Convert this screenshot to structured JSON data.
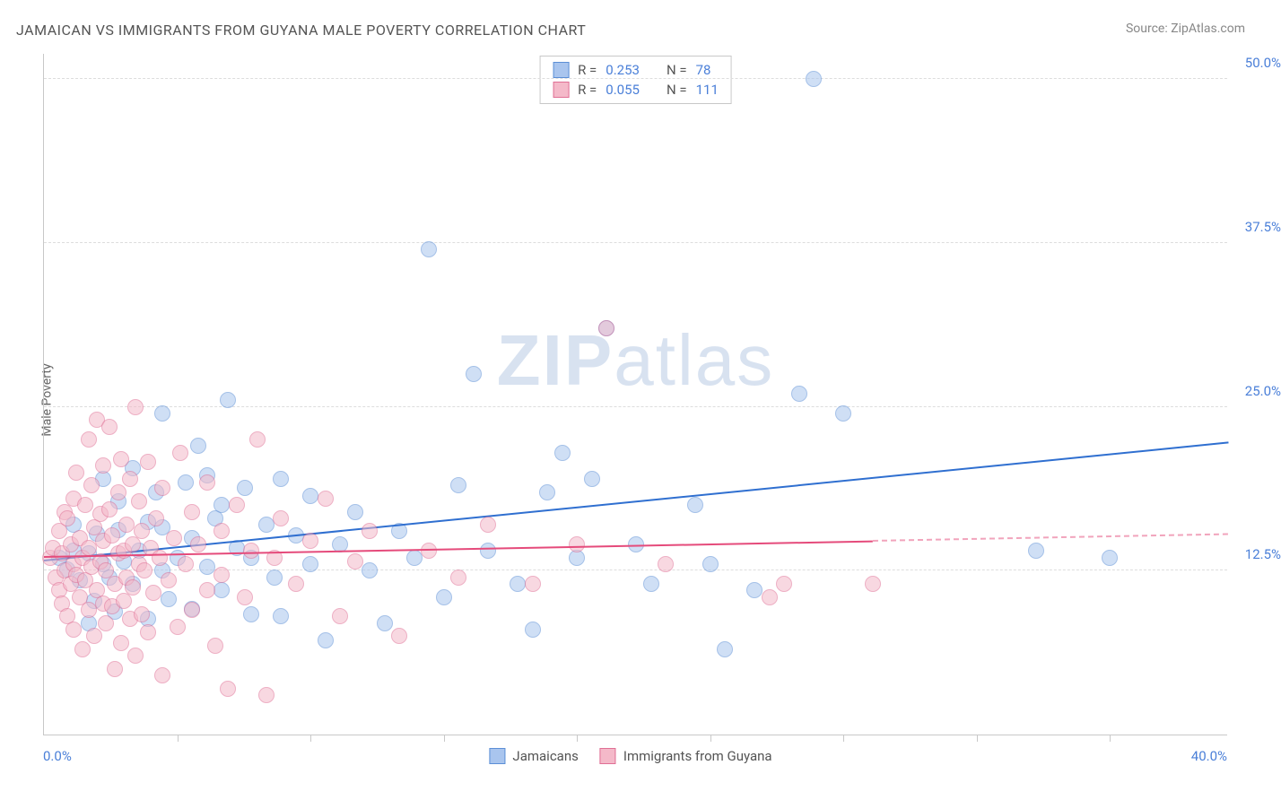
{
  "title": "JAMAICAN VS IMMIGRANTS FROM GUYANA MALE POVERTY CORRELATION CHART",
  "source_prefix": "Source: ",
  "source_name": "ZipAtlas.com",
  "ylabel": "Male Poverty",
  "watermark_bold": "ZIP",
  "watermark_rest": "atlas",
  "chart": {
    "type": "scatter",
    "xlim": [
      0,
      40
    ],
    "ylim": [
      0,
      52
    ],
    "x_min_label": "0.0%",
    "x_max_label": "40.0%",
    "x_tick_positions": [
      4.5,
      9,
      13.5,
      18,
      22.5,
      27,
      31.5,
      36
    ],
    "y_ticks": [
      {
        "v": 12.5,
        "label": "12.5%"
      },
      {
        "v": 25.0,
        "label": "25.0%"
      },
      {
        "v": 37.5,
        "label": "37.5%"
      },
      {
        "v": 50.0,
        "label": "50.0%"
      }
    ],
    "background_color": "#ffffff",
    "grid_color": "#dddddd",
    "axis_color": "#c8c8c8",
    "tick_label_color": "#4a7fd8",
    "marker_radius": 9,
    "marker_opacity": 0.55,
    "series": [
      {
        "name": "Jamaicans",
        "fill": "#a9c5ee",
        "stroke": "#5c8fd6",
        "R_label": "R  =",
        "R": "0.253",
        "N_label": "N  =",
        "N": "78",
        "trend": {
          "x1": 0,
          "y1": 13.2,
          "x2": 40,
          "y2": 22.2,
          "color": "#2f6fd0",
          "dash_after_x": null
        },
        "points": [
          [
            0.5,
            13.5
          ],
          [
            0.8,
            12.6
          ],
          [
            1.0,
            14.0
          ],
          [
            1.0,
            16.0
          ],
          [
            1.2,
            11.8
          ],
          [
            1.5,
            8.5
          ],
          [
            1.5,
            13.8
          ],
          [
            1.7,
            10.2
          ],
          [
            1.8,
            15.3
          ],
          [
            2.0,
            13.0
          ],
          [
            2.0,
            19.5
          ],
          [
            2.2,
            12.0
          ],
          [
            2.4,
            9.4
          ],
          [
            2.5,
            15.6
          ],
          [
            2.5,
            17.8
          ],
          [
            2.7,
            13.2
          ],
          [
            3.0,
            11.5
          ],
          [
            3.0,
            20.3
          ],
          [
            3.2,
            14.0
          ],
          [
            3.5,
            8.8
          ],
          [
            3.5,
            16.2
          ],
          [
            3.8,
            18.5
          ],
          [
            4.0,
            12.5
          ],
          [
            4.0,
            15.8
          ],
          [
            4.0,
            24.5
          ],
          [
            4.2,
            10.3
          ],
          [
            4.5,
            13.5
          ],
          [
            4.8,
            19.2
          ],
          [
            5.0,
            9.6
          ],
          [
            5.0,
            15.0
          ],
          [
            5.2,
            22.0
          ],
          [
            5.5,
            12.8
          ],
          [
            5.8,
            16.5
          ],
          [
            6.0,
            11.0
          ],
          [
            6.0,
            17.5
          ],
          [
            6.2,
            25.5
          ],
          [
            6.5,
            14.2
          ],
          [
            6.8,
            18.8
          ],
          [
            7.0,
            9.2
          ],
          [
            7.0,
            13.5
          ],
          [
            7.5,
            16.0
          ],
          [
            7.8,
            12.0
          ],
          [
            8.0,
            19.5
          ],
          [
            8.0,
            9.0
          ],
          [
            8.5,
            15.2
          ],
          [
            9.0,
            18.2
          ],
          [
            9.0,
            13.0
          ],
          [
            9.5,
            7.2
          ],
          [
            10.0,
            14.5
          ],
          [
            10.5,
            17.0
          ],
          [
            11.0,
            12.5
          ],
          [
            11.5,
            8.5
          ],
          [
            12.0,
            15.5
          ],
          [
            12.5,
            13.5
          ],
          [
            13.0,
            37.0
          ],
          [
            13.5,
            10.5
          ],
          [
            14.0,
            19.0
          ],
          [
            14.5,
            27.5
          ],
          [
            15.0,
            14.0
          ],
          [
            16.0,
            11.5
          ],
          [
            16.5,
            8.0
          ],
          [
            17.0,
            18.5
          ],
          [
            17.5,
            21.5
          ],
          [
            18.0,
            13.5
          ],
          [
            18.5,
            19.5
          ],
          [
            19.0,
            31.0
          ],
          [
            20.0,
            14.5
          ],
          [
            20.5,
            11.5
          ],
          [
            22.0,
            17.5
          ],
          [
            22.5,
            13.0
          ],
          [
            23.0,
            6.5
          ],
          [
            24.0,
            11.0
          ],
          [
            25.5,
            26.0
          ],
          [
            26.0,
            50.0
          ],
          [
            27.0,
            24.5
          ],
          [
            33.5,
            14.0
          ],
          [
            36.0,
            13.5
          ],
          [
            5.5,
            19.8
          ]
        ]
      },
      {
        "name": "Immigrants from Guyana",
        "fill": "#f4b9c9",
        "stroke": "#e06f95",
        "R_label": "R  =",
        "R": "0.055",
        "N_label": "N  =",
        "N": "111",
        "trend": {
          "x1": 0,
          "y1": 13.5,
          "x2": 40,
          "y2": 15.2,
          "color": "#e54b7b",
          "dash_after_x": 28
        },
        "points": [
          [
            0.2,
            13.5
          ],
          [
            0.3,
            14.2
          ],
          [
            0.4,
            12.0
          ],
          [
            0.5,
            11.0
          ],
          [
            0.5,
            15.5
          ],
          [
            0.6,
            10.0
          ],
          [
            0.6,
            13.8
          ],
          [
            0.7,
            17.0
          ],
          [
            0.7,
            12.5
          ],
          [
            0.8,
            9.0
          ],
          [
            0.8,
            16.5
          ],
          [
            0.9,
            14.5
          ],
          [
            0.9,
            11.5
          ],
          [
            1.0,
            13.0
          ],
          [
            1.0,
            18.0
          ],
          [
            1.0,
            8.0
          ],
          [
            1.1,
            20.0
          ],
          [
            1.1,
            12.2
          ],
          [
            1.2,
            15.0
          ],
          [
            1.2,
            10.5
          ],
          [
            1.3,
            6.5
          ],
          [
            1.3,
            13.5
          ],
          [
            1.4,
            17.5
          ],
          [
            1.4,
            11.8
          ],
          [
            1.5,
            22.5
          ],
          [
            1.5,
            14.2
          ],
          [
            1.5,
            9.5
          ],
          [
            1.6,
            12.8
          ],
          [
            1.6,
            19.0
          ],
          [
            1.7,
            7.5
          ],
          [
            1.7,
            15.8
          ],
          [
            1.8,
            11.0
          ],
          [
            1.8,
            24.0
          ],
          [
            1.9,
            13.2
          ],
          [
            1.9,
            16.8
          ],
          [
            2.0,
            10.0
          ],
          [
            2.0,
            14.8
          ],
          [
            2.0,
            20.5
          ],
          [
            2.1,
            8.5
          ],
          [
            2.1,
            12.5
          ],
          [
            2.2,
            17.2
          ],
          [
            2.2,
            23.5
          ],
          [
            2.3,
            9.8
          ],
          [
            2.3,
            15.2
          ],
          [
            2.4,
            11.5
          ],
          [
            2.4,
            5.0
          ],
          [
            2.5,
            13.8
          ],
          [
            2.5,
            18.5
          ],
          [
            2.6,
            7.0
          ],
          [
            2.6,
            21.0
          ],
          [
            2.7,
            14.0
          ],
          [
            2.7,
            10.2
          ],
          [
            2.8,
            16.0
          ],
          [
            2.8,
            12.0
          ],
          [
            2.9,
            19.5
          ],
          [
            2.9,
            8.8
          ],
          [
            3.0,
            14.5
          ],
          [
            3.0,
            11.2
          ],
          [
            3.1,
            25.0
          ],
          [
            3.1,
            6.0
          ],
          [
            3.2,
            13.0
          ],
          [
            3.2,
            17.8
          ],
          [
            3.3,
            9.2
          ],
          [
            3.3,
            15.5
          ],
          [
            3.4,
            12.5
          ],
          [
            3.5,
            20.8
          ],
          [
            3.5,
            7.8
          ],
          [
            3.6,
            14.2
          ],
          [
            3.7,
            10.8
          ],
          [
            3.8,
            16.5
          ],
          [
            3.9,
            13.5
          ],
          [
            4.0,
            18.8
          ],
          [
            4.0,
            4.5
          ],
          [
            4.2,
            11.8
          ],
          [
            4.4,
            15.0
          ],
          [
            4.5,
            8.2
          ],
          [
            4.6,
            21.5
          ],
          [
            4.8,
            13.0
          ],
          [
            5.0,
            17.0
          ],
          [
            5.0,
            9.5
          ],
          [
            5.2,
            14.5
          ],
          [
            5.5,
            11.0
          ],
          [
            5.5,
            19.2
          ],
          [
            5.8,
            6.8
          ],
          [
            6.0,
            15.5
          ],
          [
            6.0,
            12.2
          ],
          [
            6.2,
            3.5
          ],
          [
            6.5,
            17.5
          ],
          [
            6.8,
            10.5
          ],
          [
            7.0,
            14.0
          ],
          [
            7.2,
            22.5
          ],
          [
            7.5,
            3.0
          ],
          [
            7.8,
            13.5
          ],
          [
            8.0,
            16.5
          ],
          [
            8.5,
            11.5
          ],
          [
            9.0,
            14.8
          ],
          [
            9.5,
            18.0
          ],
          [
            10.0,
            9.0
          ],
          [
            10.5,
            13.2
          ],
          [
            11.0,
            15.5
          ],
          [
            12.0,
            7.5
          ],
          [
            13.0,
            14.0
          ],
          [
            14.0,
            12.0
          ],
          [
            15.0,
            16.0
          ],
          [
            16.5,
            11.5
          ],
          [
            18.0,
            14.5
          ],
          [
            19.0,
            31.0
          ],
          [
            21.0,
            13.0
          ],
          [
            24.5,
            10.5
          ],
          [
            25.0,
            11.5
          ],
          [
            28.0,
            11.5
          ]
        ]
      }
    ]
  }
}
